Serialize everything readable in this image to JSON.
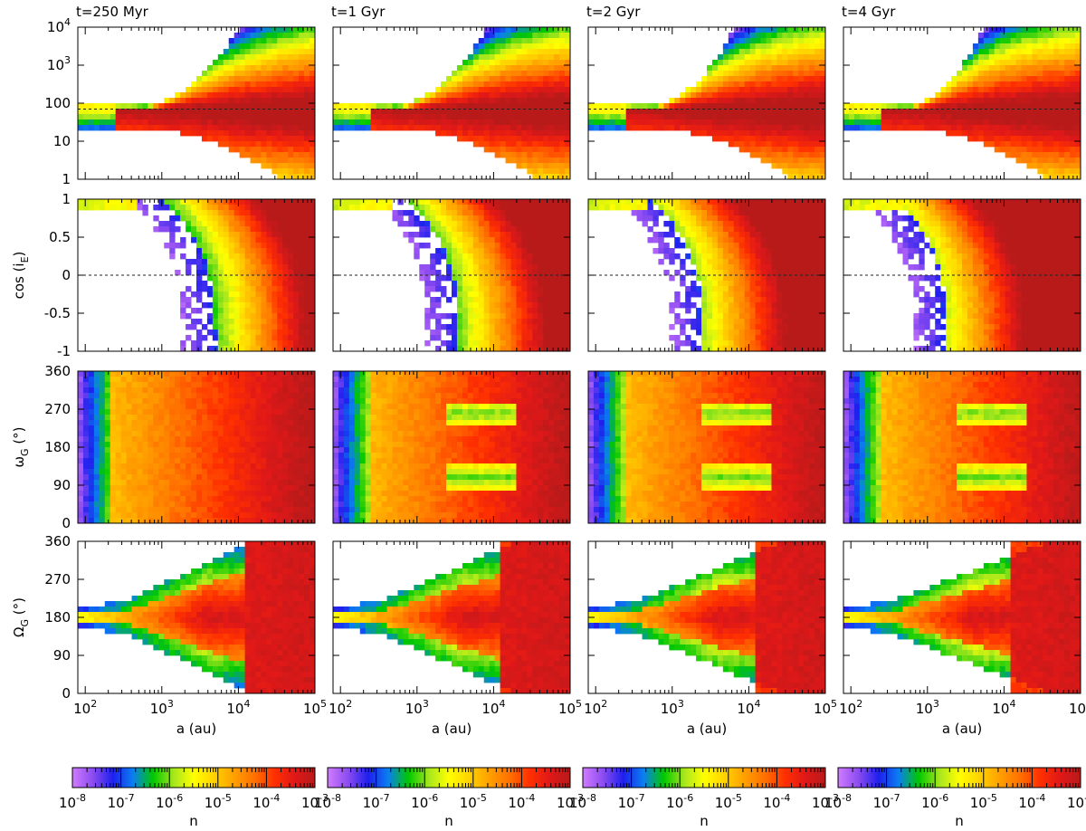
{
  "figure": {
    "columns": [
      {
        "title": "t=250 Myr"
      },
      {
        "title": "t=1 Gyr"
      },
      {
        "title": "t=2 Gyr"
      },
      {
        "title": "t=4 Gyr"
      }
    ],
    "xlabel": "a (au)",
    "colorbar": {
      "label": "n",
      "tick_exponents": [
        "-8",
        "-7",
        "-6",
        "-5",
        "-4",
        "-3"
      ],
      "colors": [
        "#d17bff",
        "#8d4cf0",
        "#1f1fee",
        "#0a7ff0",
        "#00c800",
        "#a6e61e",
        "#ffff00",
        "#ffd200",
        "#ffa000",
        "#ff7000",
        "#ff3000",
        "#e01818",
        "#b81a1a"
      ]
    },
    "row_labels": [
      {
        "text": "",
        "base": "",
        "sub": "",
        "unit": ""
      },
      {
        "text": "",
        "base": "cos (i",
        "sub": "E",
        "unit": ")"
      },
      {
        "text": "",
        "base": "ω",
        "sub": "G",
        "unit": " (°)"
      },
      {
        "text": "",
        "base": "Ω",
        "sub": "G",
        "unit": " (°)"
      }
    ]
  },
  "chart_data": {
    "type": "heatmap",
    "x": {
      "scale": "log",
      "range": [
        80,
        100000
      ],
      "ticks": [
        100,
        1000,
        10000,
        100000
      ],
      "tick_labels": [
        "10^2",
        "10^3",
        "10^4",
        "10^5"
      ],
      "label": "a (au)"
    },
    "colorbar": {
      "scale": "log",
      "range": [
        1e-08,
        0.001
      ],
      "label": "n"
    },
    "panels_grid": {
      "rows": 4,
      "columns": 4
    },
    "rows": [
      {
        "ylabel": "",
        "yscale": "log",
        "ylim": [
          1,
          10000
        ],
        "ticks": [
          1,
          10,
          100,
          1000,
          10000
        ],
        "tick_labels": [
          "1",
          "10",
          "100",
          "10^3",
          "10^4"
        ],
        "reference_line": 70
      },
      {
        "ylabel": "cos (iE)",
        "yscale": "linear",
        "ylim": [
          -1,
          1
        ],
        "ticks": [
          -1,
          -0.5,
          0,
          0.5,
          1
        ],
        "tick_labels": [
          "-1",
          "-0.5",
          "0",
          "0.5",
          "1"
        ],
        "reference_line": 0
      },
      {
        "ylabel": "ωG (°)",
        "yscale": "linear",
        "ylim": [
          0,
          360
        ],
        "ticks": [
          0,
          90,
          180,
          270,
          360
        ],
        "tick_labels": [
          "0",
          "90",
          "180",
          "270",
          "360"
        ]
      },
      {
        "ylabel": "ΩG (°)",
        "yscale": "linear",
        "ylim": [
          0,
          360
        ],
        "ticks": [
          0,
          90,
          180,
          270,
          360
        ],
        "tick_labels": [
          "0",
          "90",
          "180",
          "270",
          "360"
        ]
      }
    ],
    "columns": [
      "t=250 Myr",
      "t=1 Gyr",
      "t=2 Gyr",
      "t=4 Gyr"
    ]
  }
}
